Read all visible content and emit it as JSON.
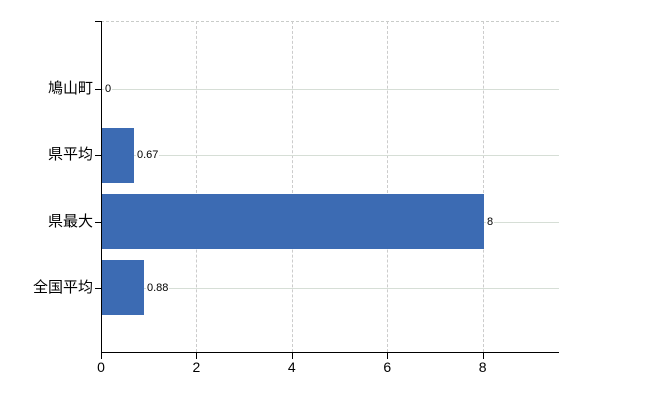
{
  "chart_data": {
    "type": "bar",
    "orientation": "horizontal",
    "title": "",
    "categories": [
      "鳩山町",
      "県平均",
      "県最大",
      "全国平均"
    ],
    "values": [
      0,
      0.67,
      8,
      0.88
    ],
    "value_labels": [
      "0",
      "0.67",
      "8",
      "0.88"
    ],
    "x_ticks": [
      0,
      2,
      4,
      6,
      8
    ],
    "x_tick_labels": [
      "0",
      "2",
      "4",
      "6",
      "8"
    ],
    "xlim": [
      0,
      9.6
    ],
    "legend": "none",
    "grid": {
      "horizontal": "solid",
      "vertical": "dashed",
      "top_border": "dashed"
    },
    "colors": {
      "bar": "#3c6bb3",
      "axis": "#000000",
      "text": "#000000",
      "h_gridline": "#d6ded6",
      "v_gridline": "#cccccc",
      "top_border": "#c9ccc9",
      "background": "#ffffff"
    }
  }
}
